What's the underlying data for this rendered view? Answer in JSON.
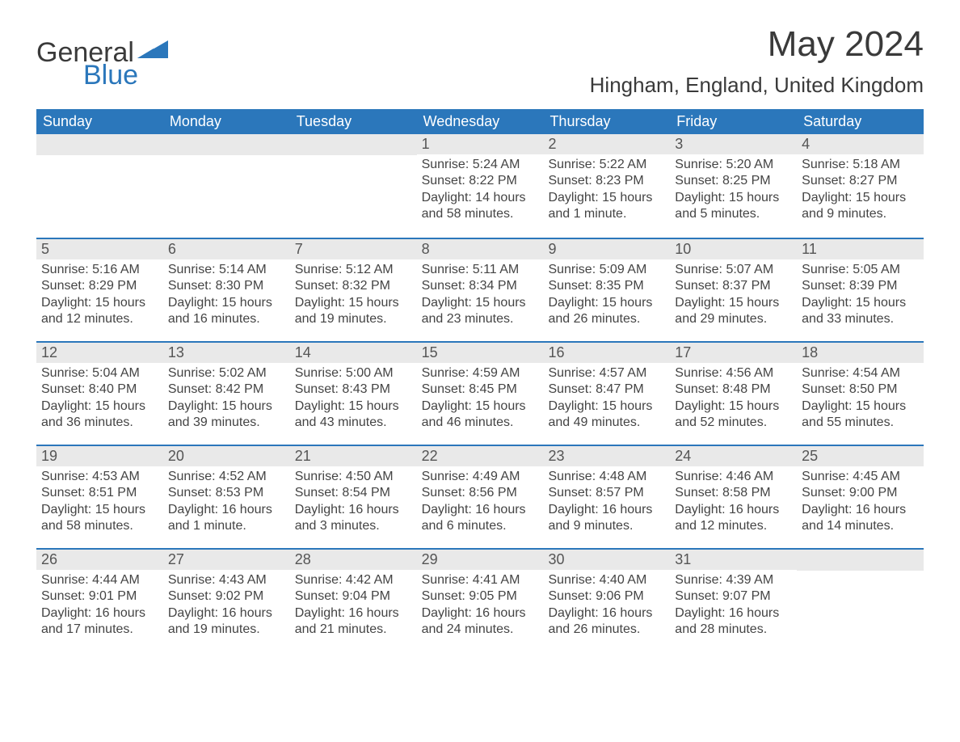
{
  "logo": {
    "text_general": "General",
    "text_blue": "Blue",
    "shape_color": "#2b77bb"
  },
  "header": {
    "title": "May 2024",
    "location": "Hingham, England, United Kingdom"
  },
  "colors": {
    "header_bg": "#2b77bb",
    "header_text": "#ffffff",
    "daynum_bg": "#e9e9e9",
    "daynum_text": "#555555",
    "body_text": "#444444",
    "week_border": "#2b77bb",
    "page_bg": "#ffffff"
  },
  "typography": {
    "title_fontsize": 44,
    "location_fontsize": 26,
    "dayheader_fontsize": 18,
    "daynum_fontsize": 18,
    "body_fontsize": 16,
    "font_family": "Arial"
  },
  "calendar": {
    "type": "table",
    "columns": [
      "Sunday",
      "Monday",
      "Tuesday",
      "Wednesday",
      "Thursday",
      "Friday",
      "Saturday"
    ],
    "weeks": [
      [
        null,
        null,
        null,
        {
          "num": "1",
          "sunrise": "Sunrise: 5:24 AM",
          "sunset": "Sunset: 8:22 PM",
          "daylight": "Daylight: 14 hours and 58 minutes."
        },
        {
          "num": "2",
          "sunrise": "Sunrise: 5:22 AM",
          "sunset": "Sunset: 8:23 PM",
          "daylight": "Daylight: 15 hours and 1 minute."
        },
        {
          "num": "3",
          "sunrise": "Sunrise: 5:20 AM",
          "sunset": "Sunset: 8:25 PM",
          "daylight": "Daylight: 15 hours and 5 minutes."
        },
        {
          "num": "4",
          "sunrise": "Sunrise: 5:18 AM",
          "sunset": "Sunset: 8:27 PM",
          "daylight": "Daylight: 15 hours and 9 minutes."
        }
      ],
      [
        {
          "num": "5",
          "sunrise": "Sunrise: 5:16 AM",
          "sunset": "Sunset: 8:29 PM",
          "daylight": "Daylight: 15 hours and 12 minutes."
        },
        {
          "num": "6",
          "sunrise": "Sunrise: 5:14 AM",
          "sunset": "Sunset: 8:30 PM",
          "daylight": "Daylight: 15 hours and 16 minutes."
        },
        {
          "num": "7",
          "sunrise": "Sunrise: 5:12 AM",
          "sunset": "Sunset: 8:32 PM",
          "daylight": "Daylight: 15 hours and 19 minutes."
        },
        {
          "num": "8",
          "sunrise": "Sunrise: 5:11 AM",
          "sunset": "Sunset: 8:34 PM",
          "daylight": "Daylight: 15 hours and 23 minutes."
        },
        {
          "num": "9",
          "sunrise": "Sunrise: 5:09 AM",
          "sunset": "Sunset: 8:35 PM",
          "daylight": "Daylight: 15 hours and 26 minutes."
        },
        {
          "num": "10",
          "sunrise": "Sunrise: 5:07 AM",
          "sunset": "Sunset: 8:37 PM",
          "daylight": "Daylight: 15 hours and 29 minutes."
        },
        {
          "num": "11",
          "sunrise": "Sunrise: 5:05 AM",
          "sunset": "Sunset: 8:39 PM",
          "daylight": "Daylight: 15 hours and 33 minutes."
        }
      ],
      [
        {
          "num": "12",
          "sunrise": "Sunrise: 5:04 AM",
          "sunset": "Sunset: 8:40 PM",
          "daylight": "Daylight: 15 hours and 36 minutes."
        },
        {
          "num": "13",
          "sunrise": "Sunrise: 5:02 AM",
          "sunset": "Sunset: 8:42 PM",
          "daylight": "Daylight: 15 hours and 39 minutes."
        },
        {
          "num": "14",
          "sunrise": "Sunrise: 5:00 AM",
          "sunset": "Sunset: 8:43 PM",
          "daylight": "Daylight: 15 hours and 43 minutes."
        },
        {
          "num": "15",
          "sunrise": "Sunrise: 4:59 AM",
          "sunset": "Sunset: 8:45 PM",
          "daylight": "Daylight: 15 hours and 46 minutes."
        },
        {
          "num": "16",
          "sunrise": "Sunrise: 4:57 AM",
          "sunset": "Sunset: 8:47 PM",
          "daylight": "Daylight: 15 hours and 49 minutes."
        },
        {
          "num": "17",
          "sunrise": "Sunrise: 4:56 AM",
          "sunset": "Sunset: 8:48 PM",
          "daylight": "Daylight: 15 hours and 52 minutes."
        },
        {
          "num": "18",
          "sunrise": "Sunrise: 4:54 AM",
          "sunset": "Sunset: 8:50 PM",
          "daylight": "Daylight: 15 hours and 55 minutes."
        }
      ],
      [
        {
          "num": "19",
          "sunrise": "Sunrise: 4:53 AM",
          "sunset": "Sunset: 8:51 PM",
          "daylight": "Daylight: 15 hours and 58 minutes."
        },
        {
          "num": "20",
          "sunrise": "Sunrise: 4:52 AM",
          "sunset": "Sunset: 8:53 PM",
          "daylight": "Daylight: 16 hours and 1 minute."
        },
        {
          "num": "21",
          "sunrise": "Sunrise: 4:50 AM",
          "sunset": "Sunset: 8:54 PM",
          "daylight": "Daylight: 16 hours and 3 minutes."
        },
        {
          "num": "22",
          "sunrise": "Sunrise: 4:49 AM",
          "sunset": "Sunset: 8:56 PM",
          "daylight": "Daylight: 16 hours and 6 minutes."
        },
        {
          "num": "23",
          "sunrise": "Sunrise: 4:48 AM",
          "sunset": "Sunset: 8:57 PM",
          "daylight": "Daylight: 16 hours and 9 minutes."
        },
        {
          "num": "24",
          "sunrise": "Sunrise: 4:46 AM",
          "sunset": "Sunset: 8:58 PM",
          "daylight": "Daylight: 16 hours and 12 minutes."
        },
        {
          "num": "25",
          "sunrise": "Sunrise: 4:45 AM",
          "sunset": "Sunset: 9:00 PM",
          "daylight": "Daylight: 16 hours and 14 minutes."
        }
      ],
      [
        {
          "num": "26",
          "sunrise": "Sunrise: 4:44 AM",
          "sunset": "Sunset: 9:01 PM",
          "daylight": "Daylight: 16 hours and 17 minutes."
        },
        {
          "num": "27",
          "sunrise": "Sunrise: 4:43 AM",
          "sunset": "Sunset: 9:02 PM",
          "daylight": "Daylight: 16 hours and 19 minutes."
        },
        {
          "num": "28",
          "sunrise": "Sunrise: 4:42 AM",
          "sunset": "Sunset: 9:04 PM",
          "daylight": "Daylight: 16 hours and 21 minutes."
        },
        {
          "num": "29",
          "sunrise": "Sunrise: 4:41 AM",
          "sunset": "Sunset: 9:05 PM",
          "daylight": "Daylight: 16 hours and 24 minutes."
        },
        {
          "num": "30",
          "sunrise": "Sunrise: 4:40 AM",
          "sunset": "Sunset: 9:06 PM",
          "daylight": "Daylight: 16 hours and 26 minutes."
        },
        {
          "num": "31",
          "sunrise": "Sunrise: 4:39 AM",
          "sunset": "Sunset: 9:07 PM",
          "daylight": "Daylight: 16 hours and 28 minutes."
        },
        null
      ]
    ]
  }
}
